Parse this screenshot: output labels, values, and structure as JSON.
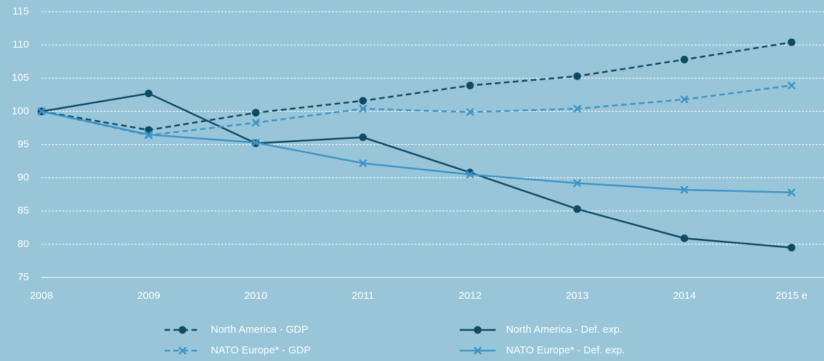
{
  "chart_data": {
    "type": "line",
    "categories": [
      "2008",
      "2009",
      "2010",
      "2011",
      "2012",
      "2013",
      "2014",
      "2015 e"
    ],
    "series": [
      {
        "name": "North America - GDP",
        "color": "#0d4a63",
        "dash": true,
        "marker": "circle",
        "values": [
          100,
          97.2,
          99.8,
          101.6,
          103.9,
          105.3,
          107.8,
          110.4
        ]
      },
      {
        "name": "North America - Def. exp.",
        "color": "#0d4a63",
        "dash": false,
        "marker": "circle",
        "values": [
          100,
          102.7,
          95.2,
          96.1,
          90.8,
          85.3,
          80.9,
          79.5
        ]
      },
      {
        "name": "NATO Europe* - GDP",
        "color": "#3a95c8",
        "dash": true,
        "marker": "x",
        "values": [
          100,
          96.4,
          98.3,
          100.4,
          99.9,
          100.4,
          101.8,
          103.9
        ]
      },
      {
        "name": "NATO Europe* - Def. exp.",
        "color": "#3a95c8",
        "dash": false,
        "marker": "x",
        "values": [
          100,
          96.5,
          95.3,
          92.2,
          90.5,
          89.2,
          88.2,
          87.8
        ]
      }
    ],
    "ylim": [
      75,
      115
    ],
    "yticks": [
      75,
      80,
      85,
      90,
      95,
      100,
      105,
      110,
      115
    ],
    "grid": true
  }
}
